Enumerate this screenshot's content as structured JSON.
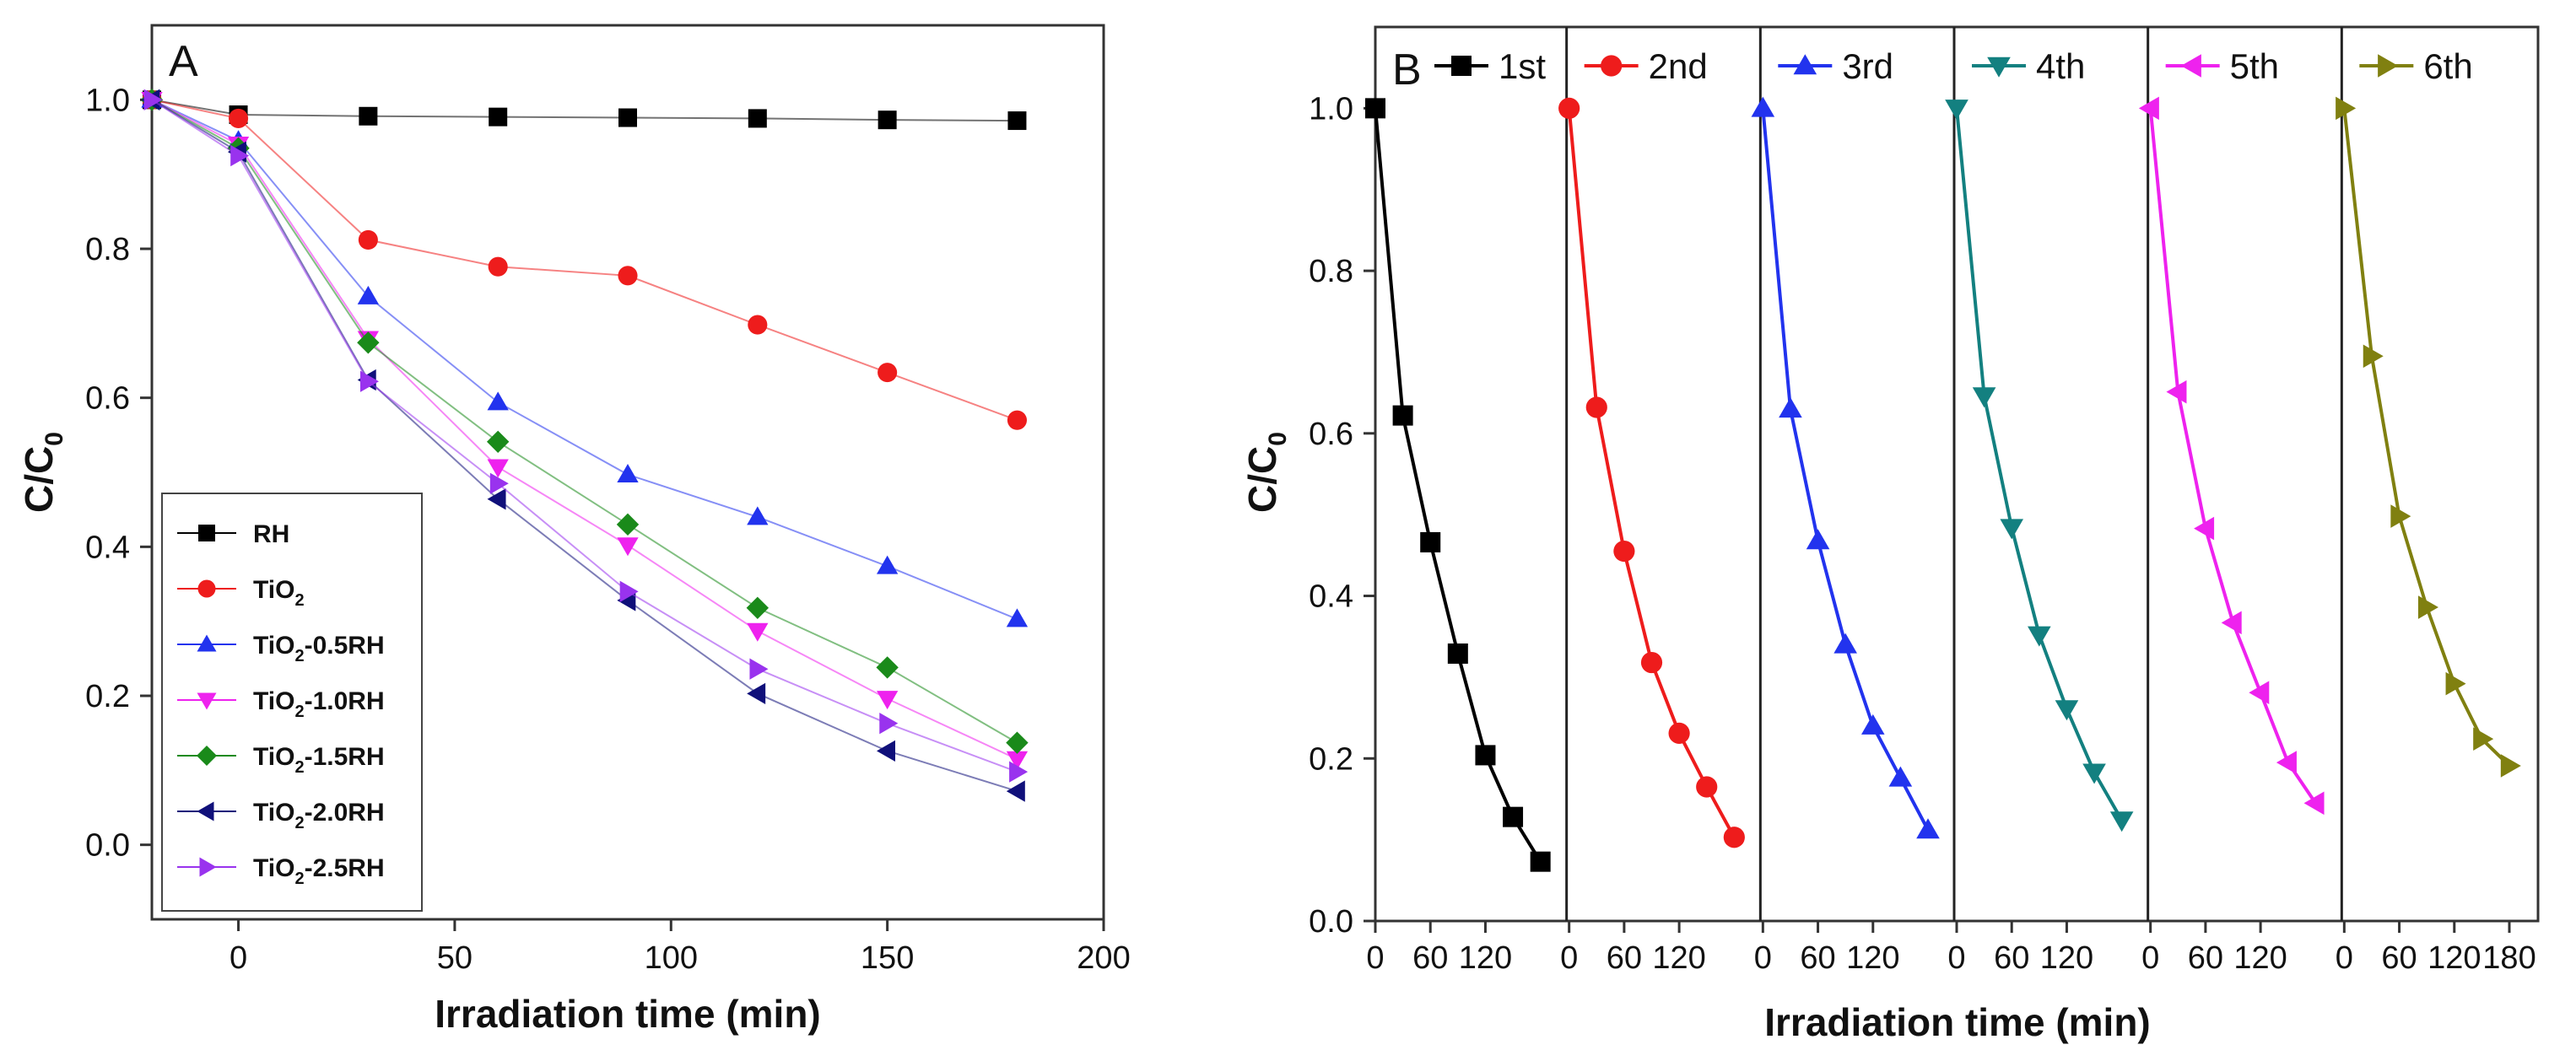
{
  "chart_data": [
    {
      "panel": "A",
      "type": "line",
      "xlabel": "Irradiation time (min)",
      "ylabel": "C/C0",
      "xlim": [
        -20,
        200
      ],
      "ylim": [
        -0.1,
        1.1
      ],
      "xticks": [
        0,
        50,
        100,
        150,
        200
      ],
      "yticks": [
        0.0,
        0.2,
        0.4,
        0.6,
        0.8,
        1.0
      ],
      "legend_position": "bottom-left",
      "x": [
        -20,
        0,
        30,
        60,
        90,
        120,
        150,
        180
      ],
      "series": [
        {
          "name": "RH",
          "color": "#000000",
          "marker": "square",
          "values": [
            1.0,
            0.98,
            0.978,
            0.977,
            0.976,
            0.975,
            0.973,
            0.972
          ]
        },
        {
          "name": "TiO2",
          "color": "#ee1c1c",
          "marker": "circle",
          "values": [
            1.0,
            0.975,
            0.812,
            0.776,
            0.764,
            0.698,
            0.634,
            0.57
          ]
        },
        {
          "name": "TiO2-0.5RH",
          "color": "#2233ee",
          "marker": "triangle-up",
          "values": [
            1.0,
            0.945,
            0.736,
            0.594,
            0.497,
            0.44,
            0.374,
            0.303
          ]
        },
        {
          "name": "TiO2-1.0RH",
          "color": "#ee22ee",
          "marker": "triangle-down",
          "values": [
            1.0,
            0.94,
            0.679,
            0.507,
            0.402,
            0.287,
            0.196,
            0.115
          ]
        },
        {
          "name": "TiO2-1.5RH",
          "color": "#1a8a1a",
          "marker": "diamond",
          "values": [
            1.0,
            0.935,
            0.674,
            0.541,
            0.43,
            0.318,
            0.238,
            0.137
          ]
        },
        {
          "name": "TiO2-2.0RH",
          "color": "#10107a",
          "marker": "triangle-left",
          "values": [
            1.0,
            0.93,
            0.624,
            0.464,
            0.328,
            0.203,
            0.126,
            0.072
          ]
        },
        {
          "name": "TiO2-2.5RH",
          "color": "#9933ee",
          "marker": "triangle-right",
          "values": [
            1.0,
            0.925,
            0.622,
            0.485,
            0.34,
            0.236,
            0.163,
            0.098
          ]
        }
      ],
      "legend_labels": [
        {
          "main": "RH",
          "sub": "",
          "rest": ""
        },
        {
          "main": "TiO",
          "sub": "2",
          "rest": ""
        },
        {
          "main": "TiO",
          "sub": "2",
          "rest": "-0.5RH"
        },
        {
          "main": "TiO",
          "sub": "2",
          "rest": "-1.0RH"
        },
        {
          "main": "TiO",
          "sub": "2",
          "rest": "-1.5RH"
        },
        {
          "main": "TiO",
          "sub": "2",
          "rest": "-2.0RH"
        },
        {
          "main": "TiO",
          "sub": "2",
          "rest": "-2.5RH"
        }
      ]
    },
    {
      "panel": "B",
      "type": "line",
      "xlabel": "Irradiation time (min)",
      "ylabel": "C/C0",
      "ylim": [
        0.0,
        1.1
      ],
      "yticks": [
        0.0,
        0.2,
        0.4,
        0.6,
        0.8,
        1.0
      ],
      "xticks_per_cycle": [
        "0",
        "60",
        "120"
      ],
      "last_cycle_xticks": [
        "0",
        "60",
        "120",
        "180"
      ],
      "cycle_x": [
        0,
        30,
        60,
        90,
        120,
        150,
        180
      ],
      "legend_position": "top",
      "series": [
        {
          "name": "1st",
          "color": "#000000",
          "marker": "square",
          "values": [
            1.0,
            0.622,
            0.466,
            0.329,
            0.204,
            0.128,
            0.073
          ]
        },
        {
          "name": "2nd",
          "color": "#ee1c1c",
          "marker": "circle",
          "values": [
            1.0,
            0.632,
            0.455,
            0.318,
            0.231,
            0.165,
            0.103
          ]
        },
        {
          "name": "3rd",
          "color": "#2233ee",
          "marker": "triangle-up",
          "values": [
            1.0,
            0.63,
            0.468,
            0.34,
            0.24,
            0.176,
            0.112
          ]
        },
        {
          "name": "4th",
          "color": "#138080",
          "marker": "triangle-down",
          "values": [
            1.0,
            0.646,
            0.484,
            0.352,
            0.261,
            0.183,
            0.124
          ]
        },
        {
          "name": "5th",
          "color": "#ee22ee",
          "marker": "triangle-left",
          "values": [
            1.0,
            0.651,
            0.483,
            0.367,
            0.281,
            0.195,
            0.145
          ]
        },
        {
          "name": "6th",
          "color": "#808010",
          "marker": "triangle-right",
          "values": [
            1.0,
            0.695,
            0.498,
            0.386,
            0.292,
            0.224,
            0.191
          ]
        }
      ]
    }
  ]
}
